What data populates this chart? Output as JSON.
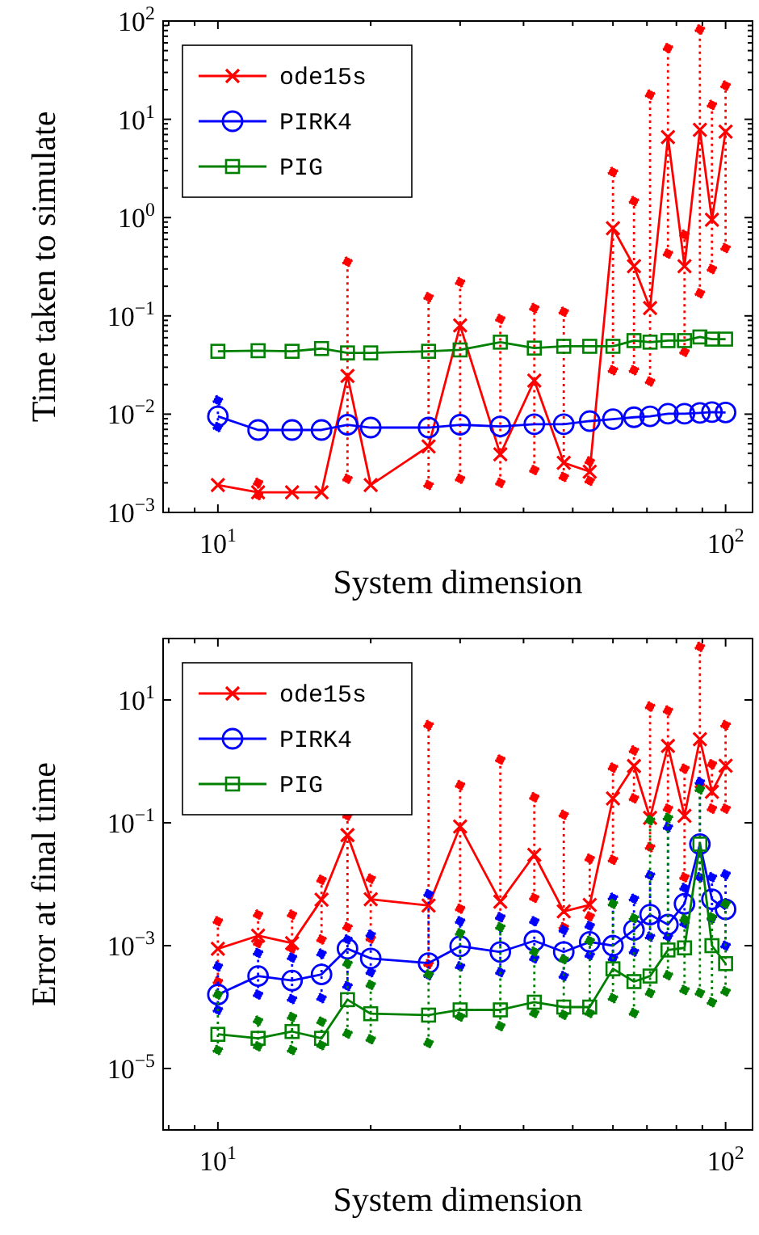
{
  "chart_data": [
    {
      "type": "line",
      "xlabel": "System dimension",
      "ylabel": "Time taken to simulate",
      "log": "xy",
      "legend": "top left",
      "xlim": [
        7.8,
        113
      ],
      "ylim": [
        0.001,
        100
      ],
      "xticks": [
        {
          "value": 8,
          "label": null
        },
        {
          "value": 9,
          "label": null
        },
        {
          "value": 10,
          "label": "10$^{1}$"
        },
        {
          "value": 20,
          "label": null
        },
        {
          "value": 30,
          "label": null
        },
        {
          "value": 40,
          "label": null
        },
        {
          "value": 50,
          "label": null
        },
        {
          "value": 60,
          "label": null
        },
        {
          "value": 70,
          "label": null
        },
        {
          "value": 80,
          "label": null
        },
        {
          "value": 90,
          "label": null
        },
        {
          "value": 100,
          "label": "10$^{2}$"
        }
      ],
      "yticks": [
        {
          "value": 0.001,
          "label": "10$^{−3}$"
        },
        {
          "value": 0.002,
          "label": null
        },
        {
          "value": 0.003,
          "label": null
        },
        {
          "value": 0.004,
          "label": null
        },
        {
          "value": 0.005,
          "label": null
        },
        {
          "value": 0.006,
          "label": null
        },
        {
          "value": 0.007,
          "label": null
        },
        {
          "value": 0.008,
          "label": null
        },
        {
          "value": 0.009,
          "label": null
        },
        {
          "value": 0.01,
          "label": "10$^{−2}$"
        },
        {
          "value": 0.02,
          "label": null
        },
        {
          "value": 0.03,
          "label": null
        },
        {
          "value": 0.04,
          "label": null
        },
        {
          "value": 0.05,
          "label": null
        },
        {
          "value": 0.06,
          "label": null
        },
        {
          "value": 0.07,
          "label": null
        },
        {
          "value": 0.08,
          "label": null
        },
        {
          "value": 0.09,
          "label": null
        },
        {
          "value": 0.1,
          "label": "10$^{−1}$"
        },
        {
          "value": 0.2,
          "label": null
        },
        {
          "value": 0.3,
          "label": null
        },
        {
          "value": 0.4,
          "label": null
        },
        {
          "value": 0.5,
          "label": null
        },
        {
          "value": 0.6,
          "label": null
        },
        {
          "value": 0.7,
          "label": null
        },
        {
          "value": 0.8,
          "label": null
        },
        {
          "value": 0.9,
          "label": null
        },
        {
          "value": 1,
          "label": "10$^{0}$"
        },
        {
          "value": 2,
          "label": null
        },
        {
          "value": 3,
          "label": null
        },
        {
          "value": 4,
          "label": null
        },
        {
          "value": 5,
          "label": null
        },
        {
          "value": 6,
          "label": null
        },
        {
          "value": 7,
          "label": null
        },
        {
          "value": 8,
          "label": null
        },
        {
          "value": 9,
          "label": null
        },
        {
          "value": 10,
          "label": "10$^{1}$"
        },
        {
          "value": 20,
          "label": null
        },
        {
          "value": 30,
          "label": null
        },
        {
          "value": 40,
          "label": null
        },
        {
          "value": 50,
          "label": null
        },
        {
          "value": 60,
          "label": null
        },
        {
          "value": 70,
          "label": null
        },
        {
          "value": 80,
          "label": null
        },
        {
          "value": 90,
          "label": null
        },
        {
          "value": 100,
          "label": "10$^{2}$"
        }
      ],
      "x": [
        10,
        12,
        14,
        16,
        18,
        20,
        26,
        30,
        36,
        42,
        48,
        54,
        60,
        66,
        71,
        77,
        83,
        89,
        94,
        100
      ],
      "series": [
        {
          "name": "ode15s",
          "color": "#ff0000",
          "marker": "cross",
          "values": [
            0.0019,
            0.0016,
            0.0016,
            0.0016,
            0.0245,
            0.0019,
            0.0047,
            0.08,
            0.0039,
            0.022,
            0.0032,
            0.0026,
            0.78,
            0.32,
            0.12,
            6.6,
            0.32,
            7.8,
            0.95,
            7.5
          ],
          "errors": [
            null,
            [
              0.0015,
              0.002
            ],
            null,
            null,
            [
              0.0022,
              0.355
            ],
            null,
            [
              0.0019,
              0.155
            ],
            [
              0.0022,
              0.22
            ],
            [
              0.002,
              0.093
            ],
            [
              0.0027,
              0.12
            ],
            [
              0.0023,
              0.11
            ],
            [
              0.0021,
              0.0033
            ],
            [
              0.028,
              2.9
            ],
            [
              0.028,
              1.47
            ],
            [
              0.0215,
              17.8
            ],
            [
              0.43,
              53
            ],
            [
              0.043,
              0.67
            ],
            [
              0.17,
              82
            ],
            [
              0.3,
              14
            ],
            [
              0.49,
              22
            ]
          ]
        },
        {
          "name": "PIRK4",
          "color": "#0000ff",
          "marker": "circle",
          "values": [
            0.0095,
            0.0069,
            0.0069,
            0.0069,
            0.0078,
            0.0073,
            0.0073,
            0.0078,
            0.0075,
            0.0079,
            0.0079,
            0.0085,
            0.0089,
            0.0093,
            0.0095,
            0.0101,
            0.0101,
            0.0103,
            0.0105,
            0.0104
          ],
          "errors": [
            [
              0.0074,
              0.0138
            ],
            null,
            null,
            null,
            null,
            null,
            null,
            null,
            null,
            null,
            null,
            null,
            null,
            null,
            null,
            null,
            null,
            null,
            null,
            null
          ]
        },
        {
          "name": "PIG",
          "color": "#008000",
          "marker": "square",
          "values": [
            0.0436,
            0.0442,
            0.0436,
            0.0465,
            0.042,
            0.042,
            0.0436,
            0.045,
            0.054,
            0.047,
            0.049,
            0.049,
            0.049,
            0.056,
            0.054,
            0.056,
            0.056,
            0.061,
            0.058,
            0.058
          ]
        }
      ]
    },
    {
      "type": "line",
      "xlabel": "System dimension",
      "ylabel": "Error at final time",
      "log": "xy",
      "legend": "top left",
      "xlim": [
        7.8,
        113
      ],
      "ylim": [
        1e-06,
        100
      ],
      "xticks": [
        {
          "value": 8,
          "label": null
        },
        {
          "value": 9,
          "label": null
        },
        {
          "value": 10,
          "label": "10$^{1}$"
        },
        {
          "value": 20,
          "label": null
        },
        {
          "value": 30,
          "label": null
        },
        {
          "value": 40,
          "label": null
        },
        {
          "value": 50,
          "label": null
        },
        {
          "value": 60,
          "label": null
        },
        {
          "value": 70,
          "label": null
        },
        {
          "value": 80,
          "label": null
        },
        {
          "value": 90,
          "label": null
        },
        {
          "value": 100,
          "label": "10$^{2}$"
        }
      ],
      "yticks": [
        {
          "value": 1e-05,
          "label": "10$^{−5}$"
        },
        {
          "value": 0.001,
          "label": "10$^{−3}$"
        },
        {
          "value": 0.1,
          "label": "10$^{−1}$"
        },
        {
          "value": 10,
          "label": "10$^{1}$"
        }
      ],
      "x": [
        10,
        12,
        14,
        16,
        18,
        20,
        26,
        30,
        36,
        42,
        48,
        54,
        60,
        66,
        71,
        77,
        83,
        89,
        94,
        100
      ],
      "series": [
        {
          "name": "ode15s",
          "color": "#ff0000",
          "marker": "cross",
          "values": [
            0.00089,
            0.00145,
            0.0011,
            0.0056,
            0.063,
            0.0057,
            0.0045,
            0.087,
            0.0052,
            0.03,
            0.0036,
            0.0046,
            0.25,
            0.84,
            0.12,
            1.78,
            0.13,
            2.3,
            0.32,
            0.85
          ],
          "errors": [
            [
              0.00026,
              0.0025
            ],
            [
              0.0011,
              0.0032
            ],
            [
              0.0009,
              0.0032
            ],
            [
              0.00126,
              0.0118
            ],
            [
              0.002,
              0.13
            ],
            [
              0.0013,
              0.0123
            ],
            [
              0.0005,
              3.9
            ],
            [
              0.004,
              0.41
            ],
            [
              0.0029,
              1.07
            ],
            [
              0.006,
              0.26
            ],
            [
              0.002,
              0.135
            ],
            [
              0.003,
              0.026
            ],
            [
              0.025,
              0.79
            ],
            [
              0.25,
              1.5
            ],
            [
              0.04,
              7.8
            ],
            [
              0.17,
              6.7
            ],
            [
              0.013,
              0.76
            ],
            [
              0.4,
              73
            ],
            [
              0.17,
              0.9
            ],
            [
              0.17,
              3.9
            ]
          ]
        },
        {
          "name": "PIRK4",
          "color": "#0000ff",
          "marker": "circle",
          "values": [
            0.00016,
            0.00032,
            0.00027,
            0.00034,
            0.00089,
            0.00062,
            0.00052,
            0.00098,
            0.00079,
            0.0012,
            0.00079,
            0.00115,
            0.001,
            0.0018,
            0.0032,
            0.0022,
            0.0048,
            0.045,
            0.0057,
            0.0039
          ],
          "errors": [
            [
              9e-05,
              0.00046
            ],
            [
              0.00016,
              0.00076
            ],
            [
              0.000135,
              0.00064
            ],
            [
              0.00014,
              0.00074
            ],
            [
              0.00022,
              0.00126
            ],
            [
              0.00037,
              0.0015
            ],
            [
              0.00033,
              0.0069
            ],
            [
              0.00046,
              0.0025
            ],
            [
              0.00037,
              0.0029
            ],
            [
              0.00062,
              0.0025
            ],
            [
              0.00032,
              0.0018
            ],
            [
              0.0007,
              0.0021
            ],
            [
              0.00062,
              0.006
            ],
            [
              0.0008,
              0.0058
            ],
            [
              0.0014,
              0.014
            ],
            [
              0.0014,
              0.085
            ],
            [
              0.0023,
              0.0087
            ],
            [
              0.013,
              0.46
            ],
            [
              0.0028,
              0.013
            ],
            [
              0.001,
              0.0145
            ]
          ]
        },
        {
          "name": "PIG",
          "color": "#008000",
          "marker": "square",
          "values": [
            3.6e-05,
            3.1e-05,
            4e-05,
            3.1e-05,
            0.000132,
            7.8e-05,
            7.4e-05,
            9e-05,
            9e-05,
            0.00012,
            0.0001,
            0.0001,
            0.00042,
            0.00026,
            0.00032,
            0.00085,
            0.00092,
            0.045,
            0.001,
            0.00051
          ],
          "errors": [
            [
              2e-05,
              0.00016
            ],
            [
              2.3e-05,
              6e-05
            ],
            [
              2e-05,
              6.9e-05
            ],
            [
              2.4e-05,
              5.8e-05
            ],
            [
              3.7e-05,
              0.00051
            ],
            [
              3e-05,
              0.00023
            ],
            [
              2.6e-05,
              0.00034
            ],
            [
              7e-05,
              0.0016
            ],
            [
              4.9e-05,
              0.002
            ],
            [
              8e-05,
              0.0008
            ],
            [
              7.5e-05,
              0.0006
            ],
            [
              8e-05,
              0.0012
            ],
            [
              0.00014,
              0.0048
            ],
            [
              8e-05,
              0.0028
            ],
            [
              0.00017,
              0.11
            ],
            [
              0.00033,
              0.12
            ],
            [
              0.00019,
              0.0027
            ],
            [
              0.00017,
              0.35
            ],
            [
              0.00012,
              0.0029
            ],
            [
              0.00018,
              0.0048
            ]
          ]
        }
      ]
    }
  ]
}
